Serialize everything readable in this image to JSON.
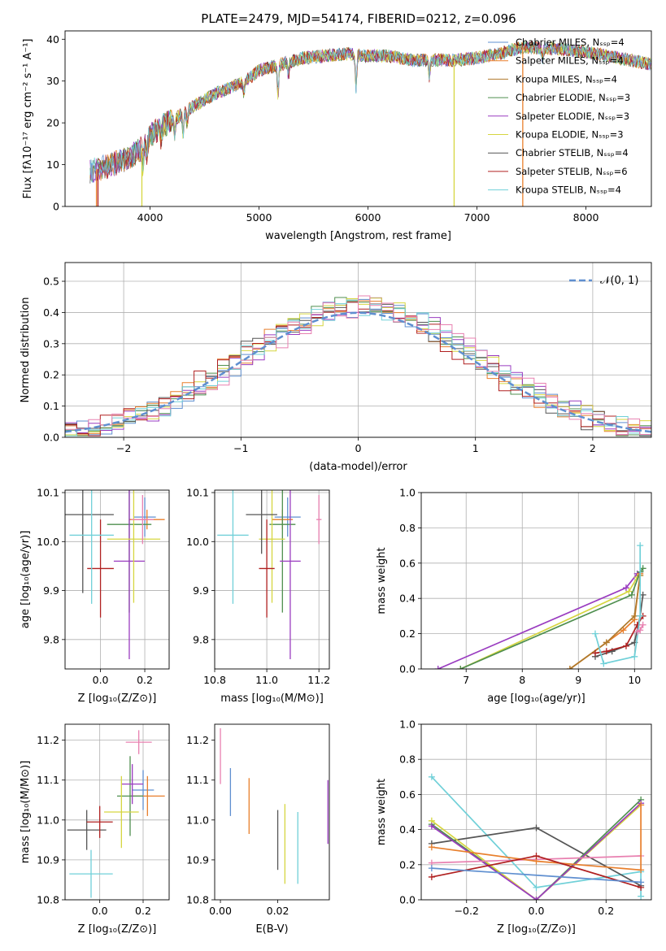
{
  "figure": {
    "title": "PLATE=2479, MJD=54174, FIBERID=0212, z=0.096",
    "colors": [
      "#5f8fd0",
      "#e87f2c",
      "#b07a2c",
      "#4f8f4f",
      "#9a3cc0",
      "#d6d640",
      "#555555",
      "#b02020",
      "#70d0d8",
      "#e880b0"
    ]
  },
  "chart_data": [
    {
      "id": "spectrum",
      "type": "line",
      "title": "PLATE=2479, MJD=54174, FIBERID=0212, z=0.096",
      "xlabel": "wavelength [Angstrom, rest frame]",
      "ylabel": "Flux [fλ10⁻¹⁷ erg cm⁻² s⁻¹ A⁻¹]",
      "xlim": [
        3220,
        8600
      ],
      "ylim": [
        0,
        42
      ],
      "xticks": [
        4000,
        5000,
        6000,
        7000,
        8000
      ],
      "yticks": [
        0,
        10,
        20,
        30,
        40
      ],
      "grid": false,
      "legend_position": "top-right",
      "legend": [
        "Chabrier MILES, Nₛₛₚ=4",
        "Salpeter MILES, Nₛₛₚ=4",
        "Kroupa MILES, Nₛₛₚ=4",
        "Chabrier ELODIE, Nₛₛₚ=3",
        "Salpeter ELODIE, Nₛₛₚ=3",
        "Kroupa ELODIE, Nₛₛₚ=3",
        "Chabrier STELIB, Nₛₛₚ=4",
        "Salpeter STELIB, Nₛₛₚ=6",
        "Kroupa STELIB, Nₛₛₚ=4"
      ],
      "series_colors": [
        "#5f8fd0",
        "#e87f2c",
        "#b07a2c",
        "#4f8f4f",
        "#9a3cc0",
        "#d6d640",
        "#555555",
        "#b02020",
        "#70d0d8"
      ],
      "continuum": {
        "x": [
          3450,
          3600,
          3800,
          3950,
          4000,
          4100,
          4200,
          4400,
          4600,
          4800,
          4900,
          5000,
          5200,
          5400,
          5600,
          5800,
          6000,
          6200,
          6400,
          6600,
          6800,
          7000,
          7200,
          7400,
          7600,
          7800,
          8000,
          8200,
          8400,
          8600
        ],
        "y": [
          8.5,
          9.5,
          11.5,
          14.5,
          17,
          19,
          20.5,
          24,
          27,
          29,
          30.5,
          32.5,
          34,
          35.5,
          36,
          36.5,
          36,
          36,
          35,
          35,
          35,
          35.5,
          36.5,
          38,
          38,
          37.5,
          37,
          36,
          35,
          34
        ]
      },
      "absorption_lines": [
        {
          "x": 3934,
          "depth": 4
        },
        {
          "x": 3969,
          "depth": 3
        },
        {
          "x": 4102,
          "depth": 3
        },
        {
          "x": 4227,
          "depth": 4
        },
        {
          "x": 4304,
          "depth": 5
        },
        {
          "x": 4340,
          "depth": 3
        },
        {
          "x": 4861,
          "depth": 3
        },
        {
          "x": 5175,
          "depth": 7
        },
        {
          "x": 5270,
          "depth": 3
        },
        {
          "x": 5890,
          "depth": 8
        },
        {
          "x": 6563,
          "depth": 4
        },
        {
          "x": 7600,
          "depth": 3
        }
      ],
      "dropouts": [
        {
          "x": 3508,
          "series": 1
        },
        {
          "x": 3522,
          "series": 7
        },
        {
          "x": 3925,
          "series": 5
        },
        {
          "x": 6790,
          "series": 5
        },
        {
          "x": 7420,
          "series": 1
        }
      ]
    },
    {
      "id": "residuals",
      "type": "bar",
      "xlabel": "(data-model)/error",
      "ylabel": "Normed distribution",
      "xlim": [
        -2.5,
        2.5
      ],
      "ylim": [
        0,
        0.56
      ],
      "xticks": [
        -2,
        -1,
        0,
        1,
        2
      ],
      "yticks": [
        0.0,
        0.1,
        0.2,
        0.3,
        0.4,
        0.5
      ],
      "grid": true,
      "legend_position": "top-right",
      "legend": [
        "𝒩(0, 1)"
      ],
      "bin_width": 0.1,
      "normal_pdf": {
        "mean": 0,
        "sigma": 1
      }
    },
    {
      "id": "age-vs-Z",
      "type": "scatter",
      "xlabel": "Z [log₁₀(Z/Z⊙)]",
      "ylabel": "age  [log₁₀(age/yr)]",
      "xlim": [
        -0.16,
        0.31
      ],
      "ylim": [
        9.74,
        10.105
      ],
      "xticks": [
        0.0,
        0.2
      ],
      "yticks": [
        9.8,
        9.9,
        10.0,
        10.1
      ],
      "grid": true,
      "points": [
        {
          "x": 0.2,
          "y": 10.05,
          "xerr": 0.05,
          "yerr": 0.04,
          "c": 0
        },
        {
          "x": 0.21,
          "y": 10.045,
          "xerr": 0.08,
          "yerr": 0.02,
          "c": 1
        },
        {
          "x": 0.13,
          "y": 10.035,
          "xerr": 0.1,
          "yerr": 0.18,
          "c": 3
        },
        {
          "x": 0.13,
          "y": 9.96,
          "xerr": 0.07,
          "yerr": 0.2,
          "c": 4
        },
        {
          "x": 0.15,
          "y": 10.005,
          "xerr": 0.12,
          "yerr": 0.13,
          "c": 5
        },
        {
          "x": -0.08,
          "y": 10.055,
          "xerr": 0.14,
          "yerr": 0.16,
          "c": 6
        },
        {
          "x": 0.0,
          "y": 9.945,
          "xerr": 0.06,
          "yerr": 0.1,
          "c": 7
        },
        {
          "x": -0.04,
          "y": 10.013,
          "xerr": 0.1,
          "yerr": 0.14,
          "c": 8
        },
        {
          "x": 0.19,
          "y": 10.045,
          "xerr": 0.05,
          "yerr": 0.05,
          "c": 9
        }
      ]
    },
    {
      "id": "age-vs-mass",
      "type": "scatter",
      "xlabel": "mass [log₁₀(M/M⊙)]",
      "xlim": [
        10.8,
        11.24
      ],
      "ylim": [
        9.74,
        10.105
      ],
      "xticks": [
        10.8,
        11.0,
        11.2
      ],
      "yticks": [
        9.8,
        9.9,
        10.0,
        10.1
      ],
      "grid": true,
      "points": [
        {
          "x": 11.08,
          "y": 10.05,
          "xerr": 0.05,
          "yerr": 0.04,
          "c": 0
        },
        {
          "x": 11.06,
          "y": 10.045,
          "xerr": 0.04,
          "yerr": 0.02,
          "c": 1
        },
        {
          "x": 11.06,
          "y": 10.035,
          "xerr": 0.05,
          "yerr": 0.18,
          "c": 3
        },
        {
          "x": 11.09,
          "y": 9.96,
          "xerr": 0.04,
          "yerr": 0.2,
          "c": 4
        },
        {
          "x": 11.02,
          "y": 10.005,
          "xerr": 0.05,
          "yerr": 0.13,
          "c": 5
        },
        {
          "x": 10.98,
          "y": 10.055,
          "xerr": 0.06,
          "yerr": 0.08,
          "c": 6
        },
        {
          "x": 11.0,
          "y": 9.945,
          "xerr": 0.03,
          "yerr": 0.1,
          "c": 7
        },
        {
          "x": 10.87,
          "y": 10.013,
          "xerr": 0.06,
          "yerr": 0.14,
          "c": 8
        },
        {
          "x": 11.2,
          "y": 10.045,
          "xerr": 0.01,
          "yerr": 0.05,
          "c": 9
        }
      ]
    },
    {
      "id": "weight-vs-age",
      "type": "line",
      "xlabel": "age  [log₁₀(age/yr)]",
      "ylabel": "mass weight",
      "xlim": [
        6.2,
        10.3
      ],
      "ylim": [
        0,
        1.0
      ],
      "xticks": [
        7,
        8,
        9,
        10
      ],
      "yticks": [
        0.0,
        0.2,
        0.4,
        0.6,
        0.8,
        1.0
      ],
      "grid": true,
      "series": [
        {
          "c": 4,
          "x": [
            6.5,
            9.85,
            10.05,
            10.1
          ],
          "y": [
            0.0,
            0.46,
            0.54,
            0.55
          ]
        },
        {
          "c": 5,
          "x": [
            6.9,
            9.9,
            10.05,
            10.1
          ],
          "y": [
            0.0,
            0.44,
            0.52,
            0.53
          ]
        },
        {
          "c": 3,
          "x": [
            6.9,
            9.95,
            10.1,
            10.15
          ],
          "y": [
            0.0,
            0.42,
            0.55,
            0.57
          ]
        },
        {
          "c": 1,
          "x": [
            8.85,
            9.5,
            9.8,
            10.0,
            10.1
          ],
          "y": [
            0.0,
            0.15,
            0.22,
            0.28,
            0.54
          ]
        },
        {
          "c": 2,
          "x": [
            8.85,
            9.5,
            10.0,
            10.1
          ],
          "y": [
            0.0,
            0.15,
            0.3,
            0.53
          ]
        },
        {
          "c": 6,
          "x": [
            9.3,
            9.6,
            10.0,
            10.1,
            10.15
          ],
          "y": [
            0.07,
            0.1,
            0.15,
            0.3,
            0.42
          ]
        },
        {
          "c": 7,
          "x": [
            9.3,
            9.5,
            9.85,
            10.05,
            10.15
          ],
          "y": [
            0.09,
            0.1,
            0.13,
            0.25,
            0.3
          ]
        },
        {
          "c": 8,
          "x": [
            9.3,
            9.45,
            10.0,
            10.1,
            10.1
          ],
          "y": [
            0.2,
            0.03,
            0.07,
            0.3,
            0.7
          ]
        },
        {
          "c": 9,
          "x": [
            10.05,
            10.1,
            10.15
          ],
          "y": [
            0.21,
            0.22,
            0.25
          ]
        }
      ]
    },
    {
      "id": "mass-vs-Z",
      "type": "scatter",
      "xlabel": "Z [log₁₀(Z/Z⊙)]",
      "ylabel": "mass [log₁₀(M/M⊙)]",
      "xlim": [
        -0.16,
        0.32
      ],
      "ylim": [
        10.8,
        11.24
      ],
      "xticks": [
        0.0,
        0.2
      ],
      "yticks": [
        10.8,
        10.9,
        11.0,
        11.1,
        11.2
      ],
      "grid": true,
      "points": [
        {
          "x": 0.2,
          "y": 11.075,
          "xerr": 0.05,
          "yerr": 0.05,
          "c": 0
        },
        {
          "x": 0.22,
          "y": 11.06,
          "xerr": 0.08,
          "yerr": 0.05,
          "c": 1
        },
        {
          "x": 0.14,
          "y": 11.06,
          "xerr": 0.06,
          "yerr": 0.1,
          "c": 3
        },
        {
          "x": 0.15,
          "y": 11.09,
          "xerr": 0.05,
          "yerr": 0.05,
          "c": 4
        },
        {
          "x": 0.1,
          "y": 11.02,
          "xerr": 0.08,
          "yerr": 0.09,
          "c": 5
        },
        {
          "x": -0.06,
          "y": 10.975,
          "xerr": 0.09,
          "yerr": 0.05,
          "c": 6
        },
        {
          "x": 0.0,
          "y": 10.995,
          "xerr": 0.06,
          "yerr": 0.04,
          "c": 7
        },
        {
          "x": -0.04,
          "y": 10.865,
          "xerr": 0.1,
          "yerr": 0.06,
          "c": 8
        },
        {
          "x": 0.18,
          "y": 11.195,
          "xerr": 0.06,
          "yerr": 0.03,
          "c": 9
        }
      ]
    },
    {
      "id": "mass-vs-ebv",
      "type": "scatter",
      "xlabel": "E(B-V)",
      "xlim": [
        -0.002,
        0.038
      ],
      "ylim": [
        10.8,
        11.24
      ],
      "xticks": [
        0.0,
        0.02
      ],
      "yticks": [
        10.8,
        10.9,
        11.0,
        11.1,
        11.2
      ],
      "grid": false,
      "points": [
        {
          "x": 0.0035,
          "y": 11.07,
          "yerr": 0.06,
          "c": 0
        },
        {
          "x": 0.01,
          "y": 11.035,
          "yerr": 0.07,
          "c": 1
        },
        {
          "x": 0.02,
          "y": 10.95,
          "yerr": 0.075,
          "c": 6
        },
        {
          "x": 0.0225,
          "y": 10.94,
          "yerr": 0.1,
          "c": 5
        },
        {
          "x": 0.027,
          "y": 10.93,
          "yerr": 0.09,
          "c": 8
        },
        {
          "x": 0.0375,
          "y": 11.02,
          "yerr": 0.08,
          "c": 4
        },
        {
          "x": 0.0,
          "y": 11.16,
          "yerr": 0.07,
          "c": 9
        }
      ]
    },
    {
      "id": "weight-vs-Z",
      "type": "line",
      "xlabel": "Z [log₁₀(Z/Z⊙)]",
      "ylabel": "mass weight",
      "xlim": [
        -0.33,
        0.33
      ],
      "ylim": [
        0,
        1.0
      ],
      "xticks": [
        -0.2,
        0.0,
        0.2
      ],
      "yticks": [
        0.0,
        0.2,
        0.4,
        0.6,
        0.8,
        1.0
      ],
      "grid": true,
      "series": [
        {
          "c": 8,
          "x": [
            -0.3,
            0.0,
            0.3,
            0.3
          ],
          "y": [
            0.7,
            0.07,
            0.16,
            0.02
          ]
        },
        {
          "c": 6,
          "x": [
            -0.3,
            0.0,
            0.3
          ],
          "y": [
            0.32,
            0.41,
            0.08
          ]
        },
        {
          "c": 3,
          "x": [
            -0.3,
            0.0,
            0.3
          ],
          "y": [
            0.43,
            0.0,
            0.57
          ]
        },
        {
          "c": 5,
          "x": [
            -0.3,
            0.0,
            0.3
          ],
          "y": [
            0.45,
            0.0,
            0.54
          ]
        },
        {
          "c": 4,
          "x": [
            -0.3,
            0.0,
            0.3
          ],
          "y": [
            0.42,
            0.0,
            0.55
          ]
        },
        {
          "c": 9,
          "x": [
            -0.3,
            0.3
          ],
          "y": [
            0.21,
            0.25
          ]
        },
        {
          "c": 1,
          "x": [
            -0.3,
            0.0,
            0.3,
            0.3
          ],
          "y": [
            0.3,
            0.22,
            0.17,
            0.54
          ]
        },
        {
          "c": 7,
          "x": [
            -0.3,
            0.0,
            0.3
          ],
          "y": [
            0.13,
            0.25,
            0.07
          ]
        },
        {
          "c": 0,
          "x": [
            -0.3,
            0.3
          ],
          "y": [
            0.18,
            0.1
          ]
        }
      ]
    }
  ]
}
